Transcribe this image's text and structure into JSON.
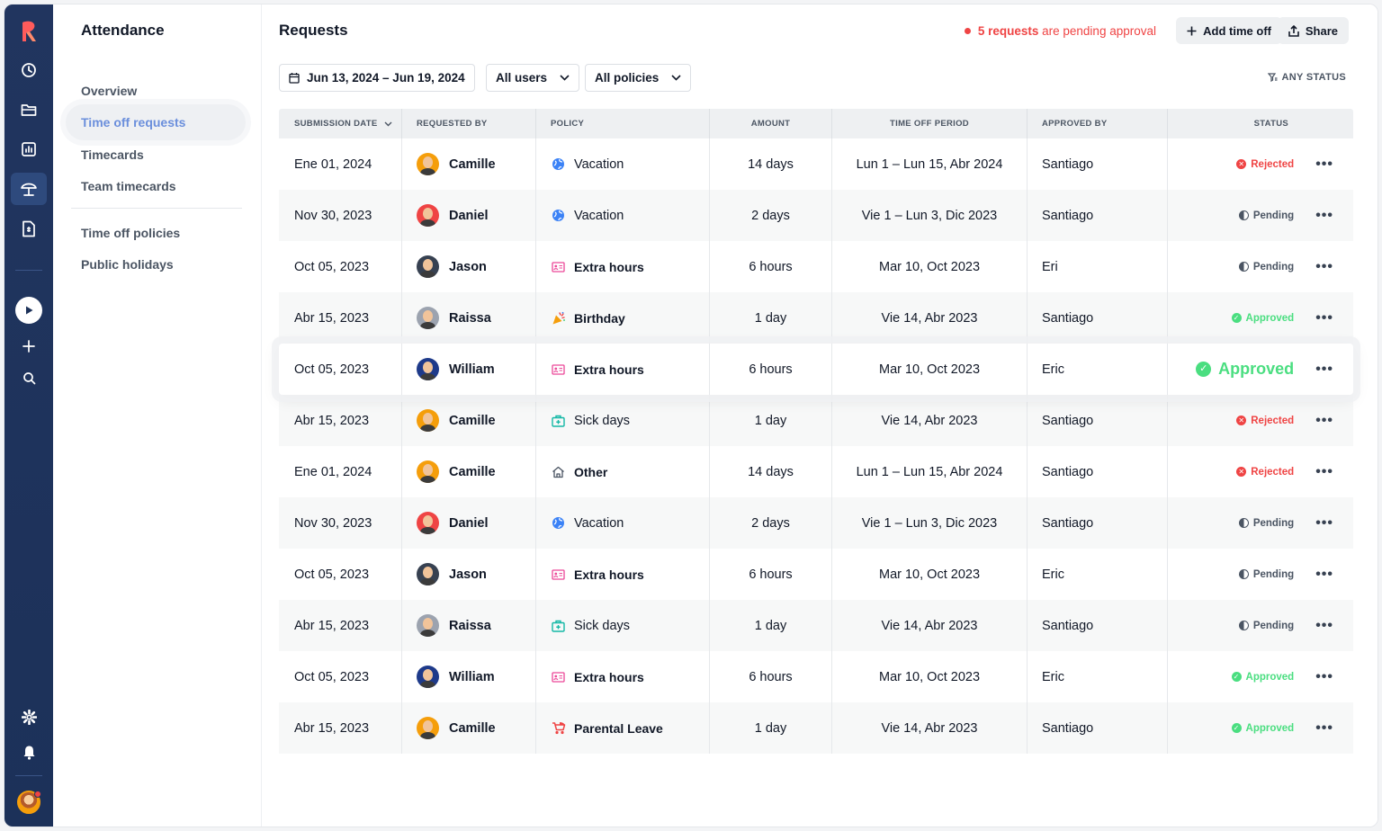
{
  "colors": {
    "rail_bg": "#21355f",
    "accent": "#6b8fdc",
    "danger": "#ef4444",
    "success": "#4ade80"
  },
  "rail": {
    "icons": [
      "logo-icon",
      "clock-icon",
      "folder-icon",
      "chart-icon",
      "umbrella-icon",
      "document-icon",
      "play-icon",
      "plus-icon",
      "search-icon",
      "gear-icon",
      "bell-icon",
      "user-avatar"
    ]
  },
  "subnav": {
    "title": "Attendance",
    "items": [
      {
        "label": "Overview"
      },
      {
        "label": "Time off requests"
      },
      {
        "label": "Timecards"
      },
      {
        "label": "Team timecards"
      },
      {
        "label": "Time off policies"
      },
      {
        "label": "Public holidays"
      }
    ]
  },
  "header": {
    "title": "Requests",
    "pending_count": "5 requests",
    "pending_suffix": "are pending approval",
    "add_label": "Add time off",
    "share_label": "Share"
  },
  "filters": {
    "date_range": "Jun 13, 2024 – Jun 19, 2024",
    "users": "All users",
    "policies": "All policies",
    "status": "ANY STATUS"
  },
  "table": {
    "columns": [
      "SUBMISSION DATE",
      "REQUESTED BY",
      "POLICY",
      "AMOUNT",
      "TIME OFF PERIOD",
      "APPROVED BY",
      "STATUS"
    ],
    "rows": [
      {
        "date": "Ene 01, 2024",
        "user": "Camille",
        "policy": "Vacation",
        "policy_icon": "globe-icon",
        "amount": "14 days",
        "period": "Lun 1 – Lun 15, Abr 2024",
        "approver": "Santiago",
        "status": "Rejected"
      },
      {
        "date": "Nov 30, 2023",
        "user": "Daniel",
        "policy": "Vacation",
        "policy_icon": "globe-icon",
        "amount": "2 days",
        "period": "Vie 1 – Lun 3, Dic 2023",
        "approver": "Santiago",
        "status": "Pending"
      },
      {
        "date": "Oct 05, 2023",
        "user": "Jason",
        "policy": "Extra hours",
        "policy_icon": "id-card-icon",
        "amount": "6 hours",
        "period": "Mar 10, Oct 2023",
        "approver": "Eri",
        "status": "Pending"
      },
      {
        "date": "Abr 15, 2023",
        "user": "Raissa",
        "policy": "Birthday",
        "policy_icon": "party-popper-icon",
        "amount": "1 day",
        "period": "Vie 14, Abr 2023",
        "approver": "Santiago",
        "status": "Approved"
      },
      {
        "date": "Oct 05, 2023",
        "user": "William",
        "policy": "Extra hours",
        "policy_icon": "id-card-icon",
        "amount": "6 hours",
        "period": "Mar 10, Oct 2023",
        "approver": "Eric",
        "status": "Approved"
      },
      {
        "date": "Abr 15, 2023",
        "user": "Camille",
        "policy": "Sick days",
        "policy_icon": "medical-kit-icon",
        "amount": "1 day",
        "period": "Vie 14, Abr 2023",
        "approver": "Santiago",
        "status": "Rejected"
      },
      {
        "date": "Ene 01, 2024",
        "user": "Camille",
        "policy": "Other",
        "policy_icon": "home-icon",
        "amount": "14 days",
        "period": "Lun 1 – Lun 15, Abr 2024",
        "approver": "Santiago",
        "status": "Rejected"
      },
      {
        "date": "Nov 30, 2023",
        "user": "Daniel",
        "policy": "Vacation",
        "policy_icon": "globe-icon",
        "amount": "2 days",
        "period": "Vie 1 – Lun 3, Dic 2023",
        "approver": "Santiago",
        "status": "Pending"
      },
      {
        "date": "Oct 05, 2023",
        "user": "Jason",
        "policy": "Extra hours",
        "policy_icon": "id-card-icon",
        "amount": "6 hours",
        "period": "Mar 10, Oct 2023",
        "approver": "Eric",
        "status": "Pending"
      },
      {
        "date": "Abr 15, 2023",
        "user": "Raissa",
        "policy": "Sick days",
        "policy_icon": "medical-kit-icon",
        "amount": "1 day",
        "period": "Vie 14, Abr 2023",
        "approver": "Santiago",
        "status": "Pending"
      },
      {
        "date": "Oct 05, 2023",
        "user": "William",
        "policy": "Extra hours",
        "policy_icon": "id-card-icon",
        "amount": "6 hours",
        "period": "Mar 10, Oct 2023",
        "approver": "Eric",
        "status": "Approved"
      },
      {
        "date": "Abr 15, 2023",
        "user": "Camille",
        "policy": "Parental Leave",
        "policy_icon": "stroller-icon",
        "amount": "1 day",
        "period": "Vie 14, Abr 2023",
        "approver": "Santiago",
        "status": "Approved"
      }
    ]
  }
}
